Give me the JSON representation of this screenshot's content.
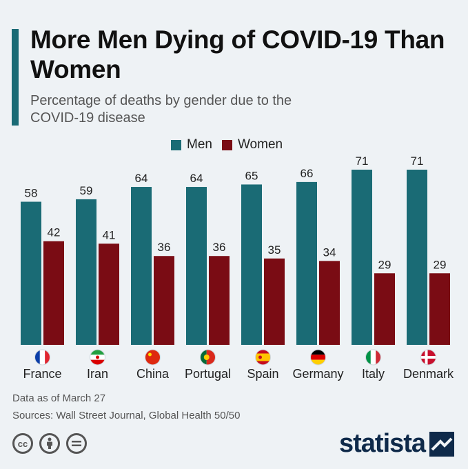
{
  "header": {
    "title": "More Men Dying of COVID-19 Than Women",
    "subtitle": "Percentage of deaths by gender due to the COVID-19 disease"
  },
  "legend": {
    "men_label": "Men",
    "women_label": "Women"
  },
  "colors": {
    "men": "#1a6b75",
    "women": "#7a0c14",
    "accent": "#1a6b75"
  },
  "chart_data": {
    "type": "bar",
    "title": "More Men Dying of COVID-19 Than Women",
    "subtitle": "Percentage of deaths by gender due to the COVID-19 disease",
    "categories": [
      "France",
      "Iran",
      "China",
      "Portugal",
      "Spain",
      "Germany",
      "Italy",
      "Denmark"
    ],
    "flag_icons": [
      "flag-france-icon",
      "flag-iran-icon",
      "flag-china-icon",
      "flag-portugal-icon",
      "flag-spain-icon",
      "flag-germany-icon",
      "flag-italy-icon",
      "flag-denmark-icon"
    ],
    "series": [
      {
        "name": "Men",
        "values": [
          58,
          59,
          64,
          64,
          65,
          66,
          71,
          71
        ]
      },
      {
        "name": "Women",
        "values": [
          42,
          41,
          36,
          36,
          35,
          34,
          29,
          29
        ]
      }
    ],
    "ylim": [
      0,
      71
    ],
    "grid": false,
    "legend_position": "top-center"
  },
  "footer": {
    "note": "Data as of March 27",
    "sources": "Sources: Wall Street Journal, Global Health 50/50",
    "brand": "statista"
  }
}
